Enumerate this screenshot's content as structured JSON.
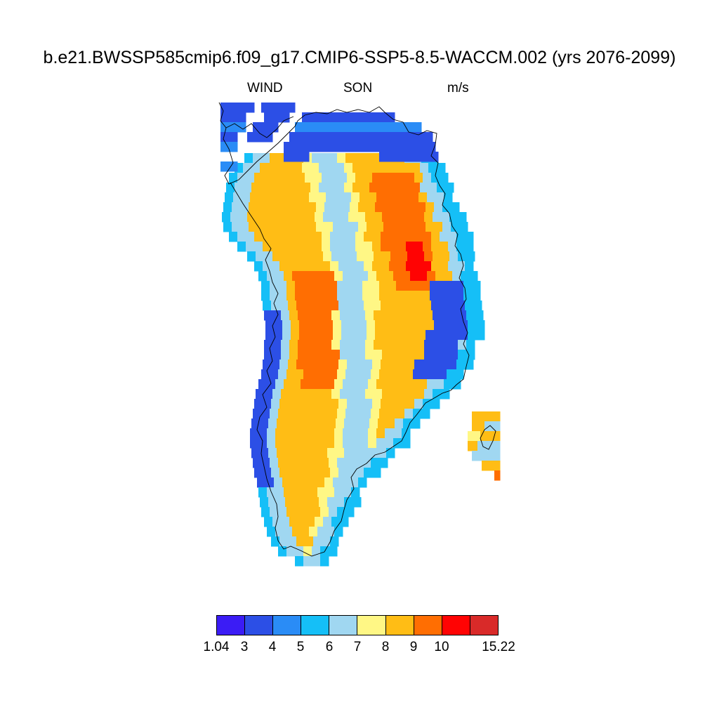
{
  "figure": {
    "title": "b.e21.BWSSP585cmip6.f09_g17.CMIP6-SSP5-8.5-WACCM.002 (yrs 2076-2099)",
    "left_label": "WIND",
    "center_label": "SON",
    "right_label": "m/s"
  },
  "map": {
    "variable": "WIND",
    "season": "SON",
    "units": "m/s",
    "region": "Greenland",
    "coastline": "black"
  },
  "colorbar": {
    "colors": [
      "#3b1cf5",
      "#2c4fe6",
      "#2a8cf6",
      "#15bff7",
      "#a0d7f1",
      "#fff785",
      "#ffbd15",
      "#ff6e02",
      "#ff0303",
      "#d92a29"
    ],
    "labels": [
      "1.04",
      "3",
      "4",
      "5",
      "6",
      "7",
      "8",
      "9",
      "10",
      "15.22"
    ],
    "boundaries": [
      1.04,
      3,
      4,
      5,
      6,
      7,
      8,
      9,
      10,
      null,
      15.22
    ]
  }
}
